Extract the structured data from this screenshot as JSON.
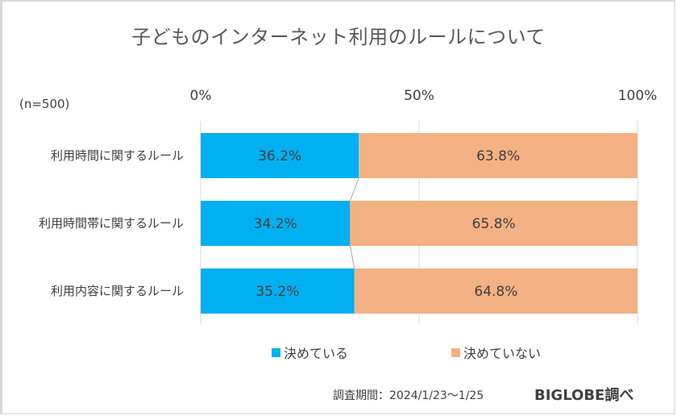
{
  "chart_data": {
    "type": "bar",
    "orientation": "horizontal",
    "stacked": true,
    "percent_stacked": true,
    "title": "子どものインターネット利用のルールについて",
    "note": "(n=500)",
    "categories": [
      "利用時間に関するルール",
      "利用時間帯に関するルール",
      "利用内容に関するルール"
    ],
    "series": [
      {
        "name": "決めている",
        "color": "#00b0f0",
        "values": [
          36.2,
          34.2,
          35.2
        ],
        "labels": [
          "36.2%",
          "34.2%",
          "35.2%"
        ]
      },
      {
        "name": "決めていない",
        "color": "#f4b183",
        "values": [
          63.8,
          65.8,
          64.8
        ],
        "labels": [
          "63.8%",
          "65.8%",
          "64.8%"
        ]
      }
    ],
    "xlim": [
      0,
      100
    ],
    "xticks": [
      0,
      50,
      100
    ],
    "xtick_labels": [
      "0%",
      "50%",
      "100%"
    ],
    "xtick_position": "top",
    "grid": true,
    "series_lines": true,
    "legend": "bottom-center",
    "footer": {
      "period": "調査期間：2024/1/23〜1/25",
      "source": "BIGLOBE調べ"
    }
  }
}
